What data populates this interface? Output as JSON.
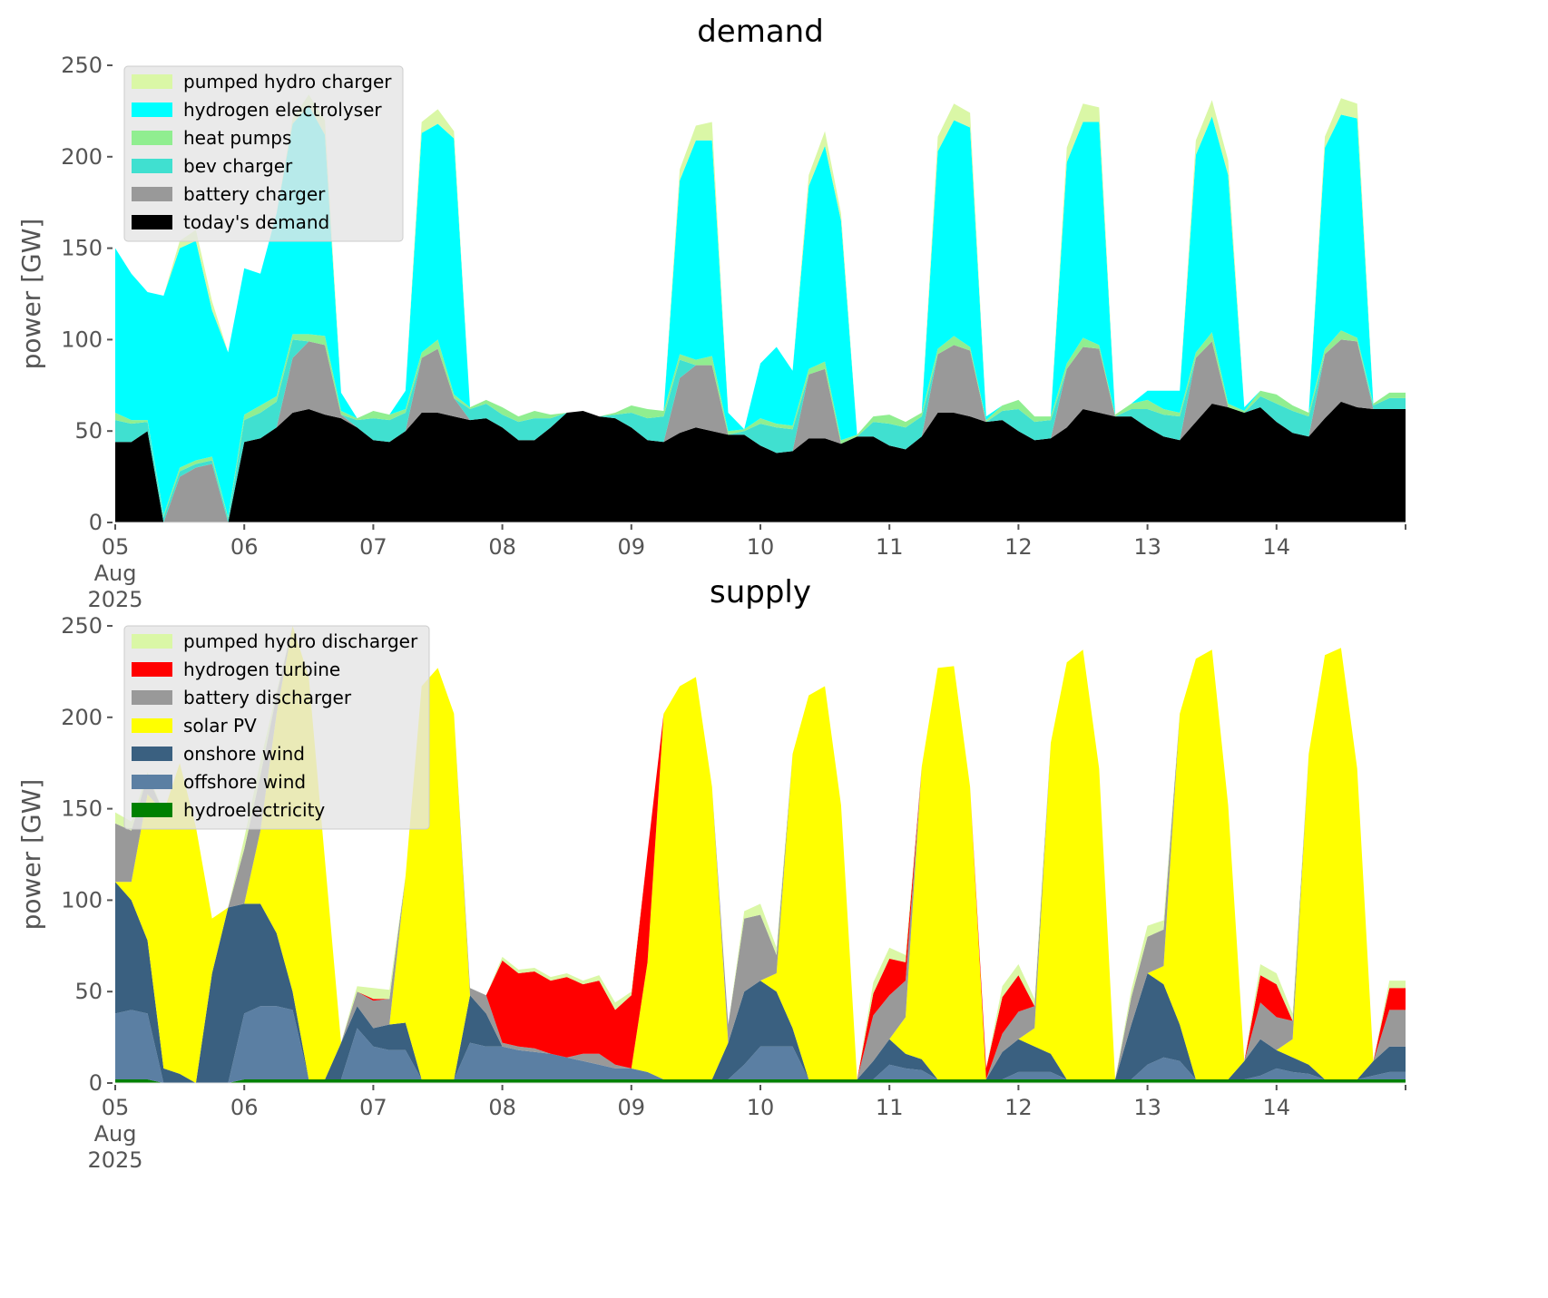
{
  "chart_data": [
    {
      "type": "area",
      "stacked": true,
      "title": "demand",
      "xlabel": "",
      "ylabel": "power [GW]",
      "ylim": [
        0,
        250
      ],
      "yticks": [
        0,
        50,
        100,
        150,
        200,
        250
      ],
      "xticks": [
        "05\nAug\n2025",
        "06",
        "07",
        "08",
        "09",
        "10",
        "11",
        "12",
        "13",
        "14"
      ],
      "x_start": "2025-08-05 00:00",
      "x_step_hours": 3,
      "grid": false,
      "legend_position": "top-left",
      "series": [
        {
          "name": "today's demand",
          "color": "#000000",
          "values": [
            44,
            44,
            50,
            0,
            0,
            0,
            0,
            0,
            44,
            46,
            52,
            60,
            62,
            59,
            57,
            52,
            45,
            44,
            50,
            60,
            60,
            58,
            56,
            57,
            52,
            45,
            45,
            52,
            60,
            61,
            58,
            57,
            52,
            45,
            44,
            49,
            52,
            50,
            48,
            48,
            42,
            38,
            39,
            46,
            46,
            43,
            47,
            47,
            42,
            40,
            47,
            60,
            60,
            58,
            55,
            56,
            50,
            45,
            46,
            52,
            62,
            60,
            58,
            58,
            52,
            47,
            45,
            55,
            65,
            63,
            60,
            63,
            55,
            49,
            47,
            57,
            66,
            63,
            62,
            62
          ]
        },
        {
          "name": "battery charger",
          "color": "#999999",
          "values": [
            0,
            0,
            0,
            0,
            25,
            30,
            32,
            0,
            0,
            0,
            0,
            30,
            37,
            38,
            2,
            0,
            0,
            0,
            0,
            30,
            35,
            10,
            0,
            0,
            0,
            0,
            0,
            0,
            0,
            0,
            0,
            0,
            0,
            0,
            0,
            30,
            34,
            36,
            0,
            0,
            0,
            0,
            0,
            35,
            38,
            0,
            0,
            0,
            0,
            0,
            0,
            32,
            37,
            36,
            0,
            0,
            0,
            0,
            0,
            32,
            34,
            35,
            0,
            0,
            0,
            0,
            0,
            35,
            34,
            0,
            0,
            0,
            0,
            0,
            0,
            35,
            34,
            36,
            0,
            0
          ]
        },
        {
          "name": "bev charger",
          "color": "#40E0D0",
          "values": [
            12,
            10,
            5,
            3,
            3,
            2,
            2,
            2,
            12,
            14,
            14,
            10,
            0,
            0,
            0,
            4,
            12,
            12,
            10,
            0,
            0,
            0,
            6,
            8,
            7,
            10,
            12,
            5,
            0,
            0,
            0,
            2,
            8,
            12,
            14,
            10,
            0,
            0,
            0,
            2,
            12,
            14,
            12,
            0,
            0,
            0,
            0,
            8,
            12,
            12,
            11,
            0,
            0,
            0,
            0,
            5,
            12,
            10,
            10,
            0,
            0,
            0,
            0,
            4,
            10,
            12,
            13,
            0,
            0,
            0,
            0,
            6,
            10,
            12,
            11,
            0,
            0,
            0,
            2,
            6
          ]
        },
        {
          "name": "heat pumps",
          "color": "#90EE90",
          "values": [
            4,
            2,
            1,
            1,
            2,
            2,
            2,
            1,
            3,
            4,
            3,
            3,
            4,
            5,
            2,
            1,
            4,
            3,
            2,
            3,
            5,
            2,
            1,
            2,
            4,
            3,
            4,
            2,
            0,
            0,
            0,
            1,
            4,
            5,
            3,
            3,
            3,
            5,
            2,
            1,
            3,
            2,
            2,
            3,
            4,
            2,
            1,
            3,
            5,
            3,
            2,
            3,
            5,
            2,
            1,
            3,
            5,
            3,
            2,
            3,
            5,
            2,
            1,
            3,
            5,
            3,
            2,
            3,
            5,
            2,
            1,
            3,
            5,
            3,
            2,
            3,
            5,
            2,
            1,
            3
          ]
        },
        {
          "name": "hydrogen electrolyser",
          "color": "#00FFFF",
          "values": [
            90,
            80,
            70,
            120,
            120,
            120,
            80,
            90,
            80,
            72,
            100,
            115,
            125,
            110,
            10,
            0,
            0,
            0,
            10,
            120,
            118,
            140,
            0,
            0,
            0,
            0,
            0,
            0,
            0,
            0,
            0,
            0,
            0,
            0,
            0,
            95,
            120,
            118,
            10,
            0,
            30,
            42,
            30,
            100,
            118,
            120,
            0,
            0,
            0,
            0,
            0,
            108,
            118,
            120,
            2,
            0,
            0,
            0,
            0,
            110,
            118,
            122,
            0,
            0,
            5,
            10,
            12,
            108,
            118,
            125,
            2,
            0,
            0,
            0,
            0,
            110,
            118,
            120,
            0,
            0
          ]
        },
        {
          "name": "pumped hydro charger",
          "color": "#DAF7A6",
          "values": [
            0,
            0,
            0,
            0,
            4,
            6,
            5,
            0,
            0,
            0,
            0,
            3,
            6,
            8,
            0,
            0,
            0,
            0,
            0,
            6,
            8,
            4,
            0,
            0,
            0,
            0,
            0,
            0,
            0,
            0,
            0,
            0,
            0,
            0,
            0,
            6,
            8,
            10,
            0,
            0,
            0,
            0,
            0,
            6,
            8,
            4,
            0,
            0,
            0,
            0,
            0,
            8,
            9,
            8,
            0,
            0,
            0,
            0,
            0,
            8,
            10,
            8,
            0,
            0,
            0,
            0,
            0,
            8,
            9,
            8,
            0,
            0,
            0,
            0,
            0,
            6,
            9,
            8,
            0,
            0
          ]
        }
      ]
    },
    {
      "type": "area",
      "stacked": true,
      "title": "supply",
      "xlabel": "",
      "ylabel": "power [GW]",
      "ylim": [
        0,
        250
      ],
      "yticks": [
        0,
        50,
        100,
        150,
        200,
        250
      ],
      "xticks": [
        "05\nAug\n2025",
        "06",
        "07",
        "08",
        "09",
        "10",
        "11",
        "12",
        "13",
        "14"
      ],
      "x_start": "2025-08-05 00:00",
      "x_step_hours": 3,
      "grid": false,
      "legend_position": "top-left",
      "series": [
        {
          "name": "hydroelectricity",
          "color": "#008000",
          "values": [
            2,
            2,
            2,
            0,
            0,
            0,
            0,
            0,
            2,
            2,
            2,
            2,
            2,
            2,
            2,
            2,
            2,
            2,
            2,
            2,
            2,
            2,
            2,
            2,
            2,
            2,
            2,
            2,
            2,
            2,
            2,
            2,
            2,
            2,
            2,
            2,
            2,
            2,
            2,
            2,
            2,
            2,
            2,
            2,
            2,
            2,
            2,
            2,
            2,
            2,
            2,
            2,
            2,
            2,
            2,
            2,
            2,
            2,
            2,
            2,
            2,
            2,
            2,
            2,
            2,
            2,
            2,
            2,
            2,
            2,
            2,
            2,
            2,
            2,
            2,
            2,
            2,
            2,
            2,
            2
          ]
        },
        {
          "name": "offshore wind",
          "color": "#5B7FA3",
          "values": [
            36,
            38,
            36,
            0,
            0,
            0,
            0,
            0,
            36,
            40,
            40,
            38,
            0,
            0,
            0,
            28,
            18,
            16,
            16,
            0,
            0,
            0,
            20,
            18,
            18,
            16,
            15,
            14,
            12,
            10,
            8,
            6,
            6,
            4,
            0,
            0,
            0,
            0,
            0,
            8,
            18,
            18,
            18,
            0,
            0,
            0,
            0,
            0,
            8,
            6,
            5,
            0,
            0,
            0,
            0,
            0,
            4,
            4,
            4,
            0,
            0,
            0,
            0,
            0,
            8,
            12,
            10,
            0,
            0,
            0,
            0,
            2,
            6,
            4,
            3,
            0,
            0,
            0,
            2,
            4
          ]
        },
        {
          "name": "onshore wind",
          "color": "#3A6080",
          "values": [
            72,
            60,
            40,
            8,
            5,
            0,
            60,
            96,
            60,
            56,
            40,
            10,
            0,
            0,
            20,
            12,
            10,
            14,
            15,
            0,
            0,
            0,
            26,
            18,
            0,
            0,
            0,
            0,
            0,
            0,
            0,
            0,
            0,
            0,
            0,
            0,
            0,
            0,
            20,
            40,
            36,
            30,
            10,
            0,
            0,
            0,
            0,
            10,
            14,
            8,
            6,
            0,
            0,
            0,
            0,
            15,
            18,
            14,
            10,
            0,
            0,
            0,
            0,
            30,
            50,
            40,
            20,
            0,
            0,
            0,
            10,
            20,
            10,
            8,
            5,
            0,
            0,
            0,
            8,
            14
          ]
        },
        {
          "name": "solar PV",
          "color": "#FFFF00",
          "values": [
            0,
            10,
            80,
            140,
            170,
            140,
            30,
            0,
            0,
            40,
            120,
            200,
            220,
            120,
            0,
            0,
            0,
            0,
            80,
            215,
            225,
            200,
            0,
            0,
            0,
            0,
            0,
            0,
            0,
            0,
            0,
            0,
            0,
            60,
            200,
            215,
            220,
            160,
            0,
            0,
            0,
            10,
            150,
            210,
            215,
            150,
            0,
            0,
            0,
            20,
            160,
            225,
            226,
            160,
            0,
            0,
            0,
            10,
            170,
            228,
            235,
            170,
            0,
            0,
            0,
            10,
            170,
            230,
            235,
            150,
            0,
            0,
            0,
            10,
            170,
            232,
            236,
            170,
            0,
            0
          ]
        },
        {
          "name": "battery discharger",
          "color": "#999999",
          "values": [
            32,
            28,
            10,
            0,
            0,
            0,
            0,
            0,
            30,
            30,
            10,
            0,
            0,
            0,
            0,
            8,
            15,
            14,
            0,
            0,
            0,
            0,
            4,
            10,
            2,
            2,
            2,
            0,
            0,
            4,
            6,
            2,
            0,
            0,
            0,
            0,
            0,
            0,
            10,
            40,
            36,
            10,
            0,
            0,
            0,
            0,
            0,
            25,
            24,
            20,
            0,
            0,
            0,
            0,
            0,
            10,
            15,
            12,
            0,
            0,
            0,
            0,
            0,
            15,
            20,
            20,
            0,
            0,
            0,
            0,
            0,
            20,
            18,
            10,
            0,
            0,
            0,
            0,
            0,
            20
          ]
        },
        {
          "name": "hydrogen turbine",
          "color": "#FF0000",
          "values": [
            0,
            0,
            0,
            0,
            0,
            0,
            0,
            0,
            0,
            0,
            0,
            0,
            0,
            0,
            0,
            0,
            1,
            0,
            0,
            0,
            0,
            0,
            0,
            0,
            45,
            40,
            42,
            40,
            44,
            38,
            40,
            30,
            40,
            60,
            0,
            0,
            0,
            0,
            0,
            0,
            0,
            0,
            0,
            0,
            0,
            0,
            0,
            12,
            20,
            10,
            0,
            0,
            0,
            0,
            6,
            20,
            20,
            0,
            0,
            0,
            0,
            0,
            0,
            0,
            0,
            0,
            0,
            0,
            0,
            0,
            0,
            15,
            18,
            0,
            0,
            0,
            0,
            0,
            0,
            12
          ]
        },
        {
          "name": "pumped hydro discharger",
          "color": "#DAF7A6",
          "values": [
            6,
            5,
            2,
            0,
            0,
            0,
            0,
            0,
            6,
            8,
            2,
            0,
            0,
            0,
            0,
            3,
            6,
            5,
            0,
            0,
            0,
            0,
            0,
            0,
            2,
            2,
            2,
            2,
            2,
            2,
            3,
            4,
            2,
            0,
            0,
            0,
            0,
            0,
            0,
            4,
            6,
            4,
            0,
            0,
            0,
            0,
            0,
            6,
            6,
            4,
            0,
            0,
            0,
            0,
            0,
            6,
            6,
            4,
            0,
            0,
            0,
            0,
            0,
            4,
            6,
            5,
            0,
            0,
            0,
            0,
            0,
            6,
            6,
            4,
            0,
            0,
            0,
            0,
            0,
            4
          ]
        }
      ]
    }
  ],
  "legends": {
    "demand": [
      "pumped hydro charger",
      "hydrogen electrolyser",
      "heat pumps",
      "bev charger",
      "battery charger",
      "today's demand"
    ],
    "supply": [
      "pumped hydro discharger",
      "hydrogen turbine",
      "battery discharger",
      "solar PV",
      "onshore wind",
      "offshore wind",
      "hydroelectricity"
    ]
  }
}
